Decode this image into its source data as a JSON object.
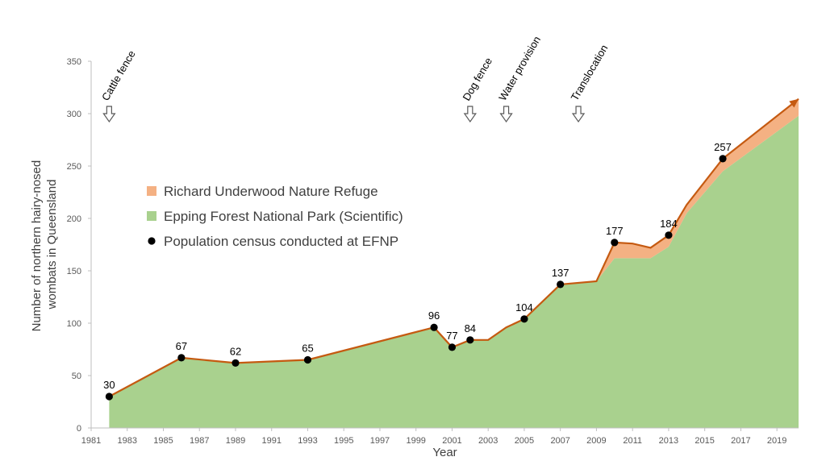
{
  "chart_data": {
    "type": "area",
    "title": "",
    "xlabel": "Year",
    "ylabel_lines": [
      "Number of northern hairy-nosed",
      "wombats in Queensland"
    ],
    "xlim": [
      1981,
      2020.2
    ],
    "ylim": [
      0,
      350
    ],
    "x_ticks": [
      1981,
      1983,
      1985,
      1987,
      1989,
      1991,
      1993,
      1995,
      1997,
      1999,
      2001,
      2003,
      2005,
      2007,
      2009,
      2011,
      2013,
      2015,
      2017,
      2019
    ],
    "y_ticks": [
      0,
      50,
      100,
      150,
      200,
      250,
      300,
      350
    ],
    "colors": {
      "epping": "#a9d18e",
      "richard": "#f4b183",
      "total_line": "#c55a11",
      "census": "#000000",
      "axis": "#bfbfbf",
      "arrow": "#595959"
    },
    "series": [
      {
        "name": "Epping Forest National Park (Scientific)",
        "x": [
          1982,
          1986,
          1989,
          1993,
          2000,
          2001,
          2002,
          2003,
          2004,
          2005,
          2007,
          2009,
          2010,
          2011,
          2012,
          2013,
          2014,
          2016,
          2020.2
        ],
        "values": [
          30,
          67,
          62,
          65,
          96,
          77,
          84,
          84,
          96,
          104,
          137,
          140,
          162,
          162,
          162,
          173,
          205,
          245,
          298
        ]
      },
      {
        "name": "Richard Underwood Nature Refuge",
        "x": [
          1982,
          1986,
          1989,
          1993,
          2000,
          2001,
          2002,
          2003,
          2004,
          2005,
          2007,
          2009,
          2010,
          2011,
          2012,
          2013,
          2014,
          2016,
          2020.2
        ],
        "values": [
          0,
          0,
          0,
          0,
          0,
          0,
          0,
          0,
          0,
          0,
          0,
          0,
          15,
          14,
          10,
          11,
          8,
          12,
          16
        ]
      }
    ],
    "census": {
      "name": "Population census conducted at EFNP",
      "x": [
        1982,
        1986,
        1989,
        1993,
        2000,
        2001,
        2002,
        2005,
        2007,
        2010,
        2013,
        2016
      ],
      "values": [
        30,
        67,
        62,
        65,
        96,
        77,
        84,
        104,
        137,
        177,
        184,
        257
      ],
      "labels": [
        "30",
        "67",
        "62",
        "65",
        "96",
        "77",
        "84",
        "104",
        "137",
        "177",
        "184",
        "257"
      ]
    },
    "events": [
      {
        "label": "Cattle fence",
        "x": 1982
      },
      {
        "label": "Dog fence",
        "x": 2002
      },
      {
        "label": "Water provision",
        "x": 2004
      },
      {
        "label": "Translocation",
        "x": 2008
      }
    ],
    "legend": {
      "placement": "center-left",
      "entries": [
        "Richard Underwood Nature Refuge",
        "Epping Forest National Park (Scientific)",
        "Population census conducted at EFNP"
      ]
    }
  }
}
